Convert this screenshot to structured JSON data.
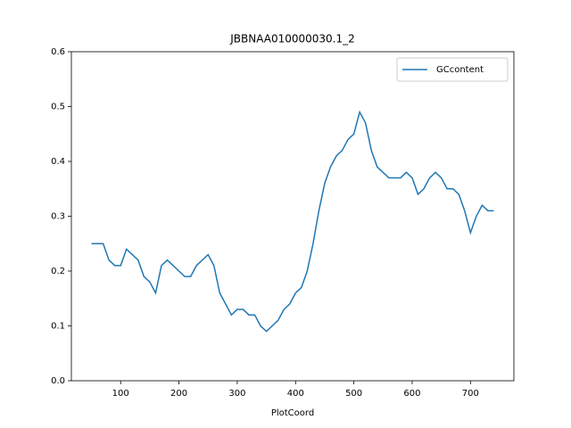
{
  "chart_data": {
    "type": "line",
    "title": "JBBNAA010000030.1_2",
    "x_label": "PlotCoord",
    "x": [
      50,
      60,
      70,
      80,
      90,
      100,
      110,
      120,
      130,
      140,
      150,
      160,
      170,
      180,
      190,
      200,
      210,
      220,
      230,
      240,
      250,
      260,
      270,
      280,
      290,
      300,
      310,
      320,
      330,
      340,
      350,
      360,
      370,
      380,
      390,
      400,
      410,
      420,
      430,
      440,
      450,
      460,
      470,
      480,
      490,
      500,
      510,
      520,
      530,
      540,
      550,
      560,
      570,
      580,
      590,
      600,
      610,
      620,
      630,
      640,
      650,
      660,
      670,
      680,
      690,
      700,
      710,
      720,
      730,
      740
    ],
    "series": [
      {
        "name": "GCcontent",
        "color": "#1f77b4",
        "values": [
          0.25,
          0.25,
          0.25,
          0.22,
          0.21,
          0.21,
          0.24,
          0.23,
          0.22,
          0.19,
          0.18,
          0.16,
          0.21,
          0.22,
          0.21,
          0.2,
          0.19,
          0.19,
          0.21,
          0.22,
          0.23,
          0.21,
          0.16,
          0.14,
          0.12,
          0.13,
          0.13,
          0.12,
          0.12,
          0.1,
          0.09,
          0.1,
          0.11,
          0.13,
          0.14,
          0.16,
          0.17,
          0.2,
          0.25,
          0.31,
          0.36,
          0.39,
          0.41,
          0.42,
          0.44,
          0.45,
          0.49,
          0.47,
          0.42,
          0.39,
          0.38,
          0.37,
          0.37,
          0.37,
          0.38,
          0.37,
          0.34,
          0.35,
          0.37,
          0.38,
          0.37,
          0.35,
          0.35,
          0.34,
          0.31,
          0.27,
          0.3,
          0.32,
          0.31,
          0.31
        ]
      }
    ],
    "xlim": [
      15.5,
      774.5
    ],
    "ylim": [
      0,
      0.6
    ],
    "xticks": [
      100,
      200,
      300,
      400,
      500,
      600,
      700
    ],
    "yticks": [
      {
        "value": 0,
        "label": "0.0"
      },
      0.1,
      0.2,
      0.3,
      0.4,
      0.5,
      0.6
    ],
    "legend": "upper right"
  }
}
